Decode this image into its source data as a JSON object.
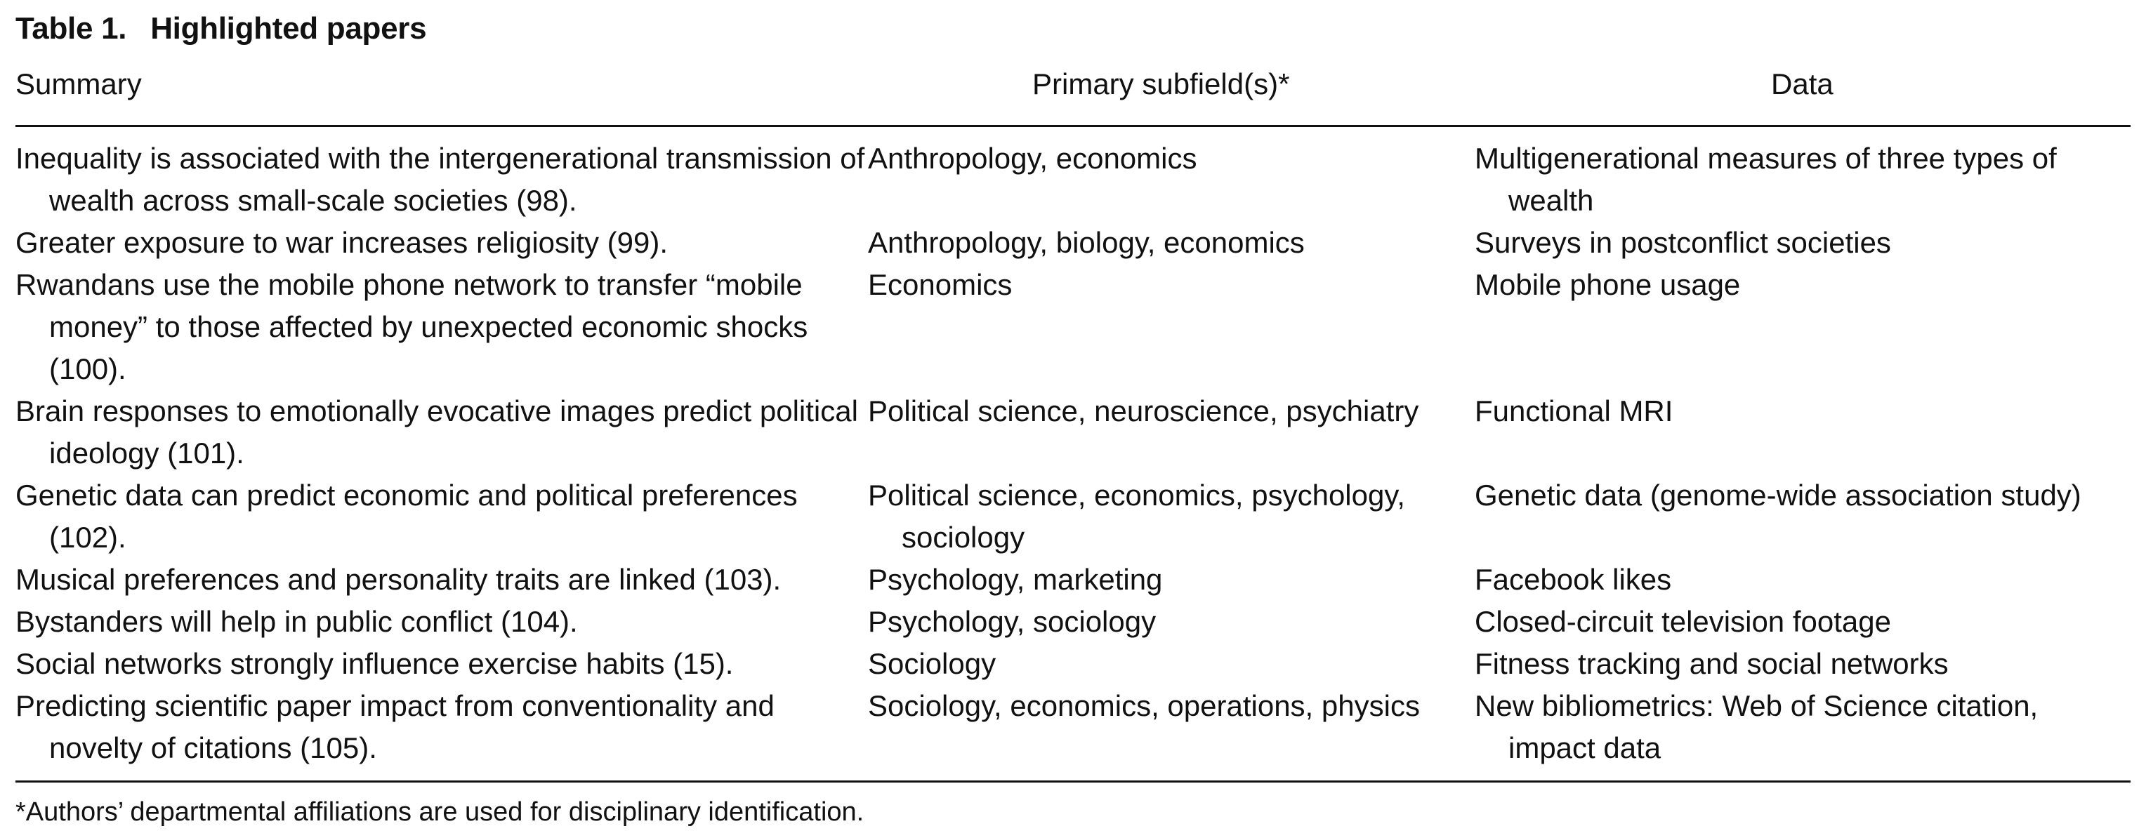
{
  "table": {
    "number": "Table 1.",
    "title": "Highlighted papers",
    "headers": {
      "summary": "Summary",
      "subfields": "Primary subfield(s)*",
      "data": "Data"
    },
    "rows": [
      {
        "summary": "Inequality is associated with the intergenerational transmission of wealth across small-scale societies (98).",
        "subfields": "Anthropology, economics",
        "data": "Multigenerational measures of three types of wealth"
      },
      {
        "summary": "Greater exposure to war increases religiosity (99).",
        "subfields": "Anthropology, biology, economics",
        "data": "Surveys in postconflict societies"
      },
      {
        "summary": "Rwandans use the mobile phone network to transfer “mobile money” to those affected by unexpected economic shocks (100).",
        "subfields": "Economics",
        "data": "Mobile phone usage"
      },
      {
        "summary": "Brain responses to emotionally evocative images predict political ideology (101).",
        "subfields": "Political science, neuroscience, psychiatry",
        "data": "Functional MRI"
      },
      {
        "summary": "Genetic data can predict economic and political preferences (102).",
        "subfields": "Political science, economics, psychology, sociology",
        "data": "Genetic data (genome-wide association study)"
      },
      {
        "summary": "Musical preferences and personality traits are linked (103).",
        "subfields": "Psychology, marketing",
        "data": "Facebook likes"
      },
      {
        "summary": "Bystanders will help in public conflict (104).",
        "subfields": "Psychology, sociology",
        "data": "Closed-circuit television footage"
      },
      {
        "summary": "Social networks strongly influence exercise habits (15).",
        "subfields": "Sociology",
        "data": "Fitness tracking and social networks"
      },
      {
        "summary": "Predicting scientific paper impact from conventionality and novelty of citations (105).",
        "subfields": "Sociology, economics, operations, physics",
        "data": "New bibliometrics: Web of Science citation, impact data"
      }
    ],
    "footnote": "*Authors’ departmental affiliations are used for disciplinary identification."
  }
}
